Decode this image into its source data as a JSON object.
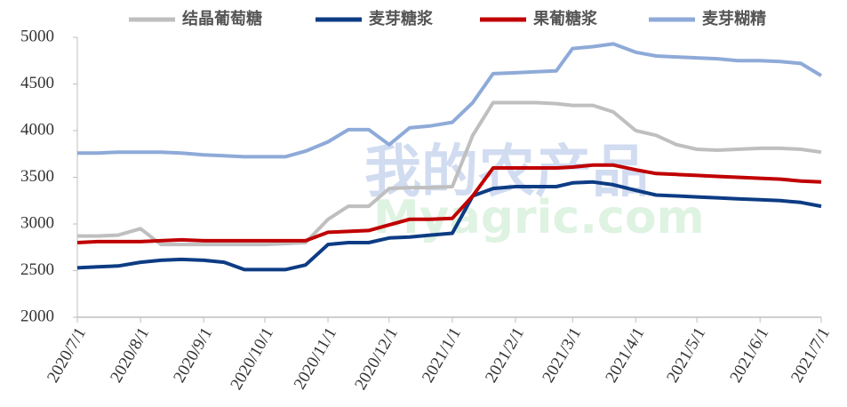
{
  "chart_data": {
    "type": "line",
    "watermark": [
      "我的农产品",
      "Myagric.com"
    ],
    "x": [
      "2020/7/1",
      "2020/7/11",
      "2020/7/21",
      "2020/8/1",
      "2020/8/11",
      "2020/8/21",
      "2020/9/1",
      "2020/9/11",
      "2020/9/21",
      "2020/10/1",
      "2020/10/11",
      "2020/10/21",
      "2020/11/1",
      "2020/11/11",
      "2020/11/21",
      "2020/12/1",
      "2020/12/11",
      "2020/12/21",
      "2021/1/1",
      "2021/1/11",
      "2021/1/21",
      "2021/2/1",
      "2021/2/11",
      "2021/2/21",
      "2021/3/1",
      "2021/3/11",
      "2021/3/21",
      "2021/4/1",
      "2021/4/11",
      "2021/4/21",
      "2021/5/1",
      "2021/5/11",
      "2021/5/21",
      "2021/6/1",
      "2021/6/11",
      "2021/6/21",
      "2021/7/1"
    ],
    "series": [
      {
        "name": "结晶葡萄糖",
        "color": "#bfbfbf",
        "values": [
          2870,
          2870,
          2880,
          2950,
          2780,
          2780,
          2780,
          2780,
          2780,
          2780,
          2790,
          2800,
          3050,
          3190,
          3190,
          3380,
          3390,
          3390,
          3400,
          3950,
          4300,
          4300,
          4300,
          4290,
          4270,
          4270,
          4200,
          4000,
          3950,
          3850,
          3800,
          3790,
          3800,
          3810,
          3810,
          3800,
          3770
        ]
      },
      {
        "name": "麦芽糖浆",
        "color": "#0d3c84",
        "values": [
          2530,
          2540,
          2550,
          2590,
          2610,
          2620,
          2610,
          2590,
          2510,
          2510,
          2510,
          2560,
          2780,
          2800,
          2800,
          2850,
          2860,
          2880,
          2900,
          3300,
          3380,
          3400,
          3400,
          3400,
          3440,
          3450,
          3420,
          3360,
          3310,
          3300,
          3290,
          3280,
          3270,
          3260,
          3250,
          3230,
          3190
        ]
      },
      {
        "name": "果葡糖浆",
        "color": "#c00000",
        "values": [
          2800,
          2810,
          2810,
          2810,
          2820,
          2830,
          2820,
          2820,
          2820,
          2820,
          2820,
          2820,
          2910,
          2920,
          2930,
          2990,
          3050,
          3050,
          3060,
          3300,
          3600,
          3600,
          3600,
          3600,
          3610,
          3630,
          3630,
          3580,
          3540,
          3530,
          3520,
          3510,
          3500,
          3490,
          3480,
          3460,
          3450
        ]
      },
      {
        "name": "麦芽糊精",
        "color": "#8eaad8",
        "values": [
          3760,
          3760,
          3770,
          3770,
          3770,
          3760,
          3740,
          3730,
          3720,
          3720,
          3720,
          3780,
          3880,
          4010,
          4010,
          3850,
          4030,
          4050,
          4090,
          4300,
          4610,
          4620,
          4630,
          4640,
          4880,
          4900,
          4930,
          4840,
          4800,
          4790,
          4780,
          4770,
          4750,
          4750,
          4740,
          4720,
          4590
        ]
      }
    ],
    "xlim": [
      "2020/7/1",
      "2021/7/1"
    ],
    "xticks": [
      "2020/7/1",
      "2020/8/1",
      "2020/9/1",
      "2020/10/1",
      "2020/11/1",
      "2020/12/1",
      "2021/1/1",
      "2021/2/1",
      "2021/3/1",
      "2021/4/1",
      "2021/5/1",
      "2021/6/1",
      "2021/7/1"
    ],
    "ylim": [
      2000,
      5000
    ],
    "yticks": [
      2000,
      2500,
      3000,
      3500,
      4000,
      4500,
      5000
    ]
  }
}
